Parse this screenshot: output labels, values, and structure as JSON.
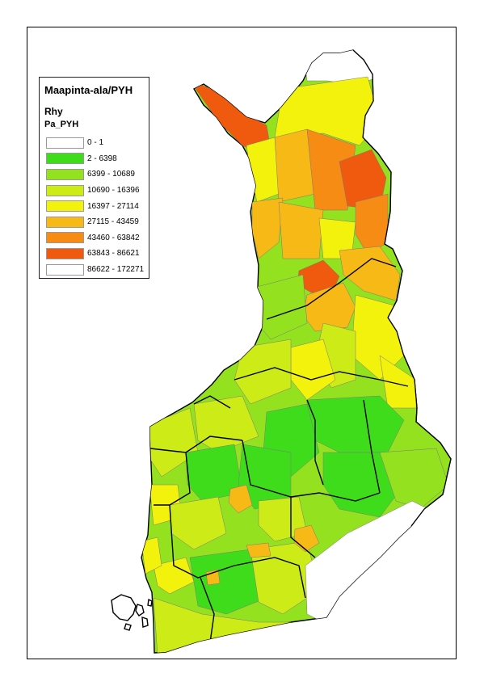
{
  "legend": {
    "title": "Maapinta-ala/PYH",
    "layer": "Rhy",
    "field": "Pa_PYH",
    "classes": [
      {
        "label": "0 - 1",
        "color": "#ffffff"
      },
      {
        "label": "2 - 6398",
        "color": "#3fdc1c"
      },
      {
        "label": "6399 - 10689",
        "color": "#94e21f"
      },
      {
        "label": "10690 - 16396",
        "color": "#cdeb16"
      },
      {
        "label": "16397 - 27114",
        "color": "#f2f20d"
      },
      {
        "label": "27115 - 43459",
        "color": "#f7b916"
      },
      {
        "label": "43460 - 63842",
        "color": "#f68c13"
      },
      {
        "label": "63843 - 86621",
        "color": "#ef5a0f"
      },
      {
        "label": "86622 - 172271",
        "color": "#ffffff"
      }
    ]
  }
}
